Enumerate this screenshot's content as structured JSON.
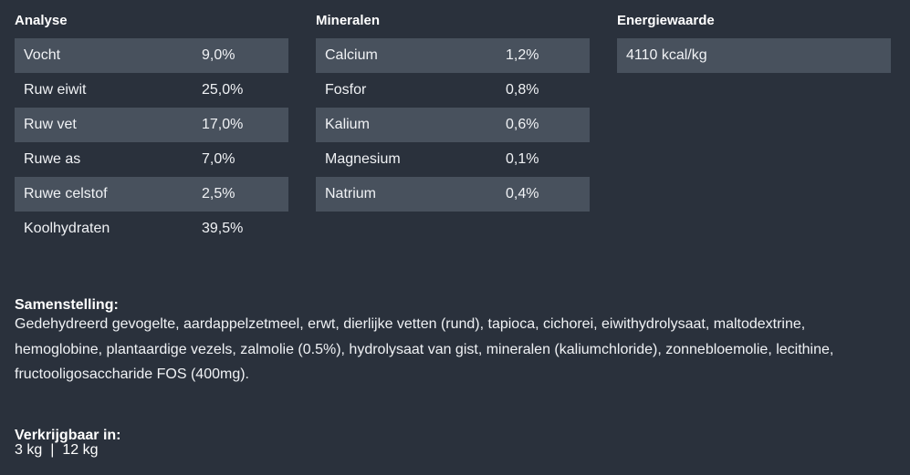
{
  "analyse": {
    "title": "Analyse",
    "rows": [
      {
        "label": "Vocht",
        "value": "9,0%"
      },
      {
        "label": "Ruw eiwit",
        "value": "25,0%"
      },
      {
        "label": "Ruw vet",
        "value": "17,0%"
      },
      {
        "label": "Ruwe as",
        "value": "7,0%"
      },
      {
        "label": "Ruwe celstof",
        "value": "2,5%"
      },
      {
        "label": "Koolhydraten",
        "value": "39,5%"
      }
    ]
  },
  "mineralen": {
    "title": "Mineralen",
    "rows": [
      {
        "label": "Calcium",
        "value": "1,2%"
      },
      {
        "label": "Fosfor",
        "value": "0,8%"
      },
      {
        "label": "Kalium",
        "value": "0,6%"
      },
      {
        "label": "Magnesium",
        "value": "0,1%"
      },
      {
        "label": "Natrium",
        "value": "0,4%"
      }
    ]
  },
  "energie": {
    "title": "Energiewaarde",
    "value": "4110 kcal/kg"
  },
  "samenstelling": {
    "title": "Samenstelling:",
    "text": "Gedehydreerd gevogelte, aardappelzetmeel, erwt, dierlijke vetten (rund), tapioca, cichorei, eiwithydrolysaat, maltodextrine, hemoglobine, plantaardige vezels, zalmolie (0.5%), hydrolysaat van gist, mineralen (kaliumchloride), zonnebloemolie, lecithine, fructooligosaccharide FOS (400mg)."
  },
  "verkrijgbaar": {
    "title": "Verkrijgbaar in:",
    "sizes": [
      "3 kg",
      "12 kg"
    ],
    "separator": "|"
  },
  "colors": {
    "background": "#2a313c",
    "row_shaded": "#48515d"
  }
}
